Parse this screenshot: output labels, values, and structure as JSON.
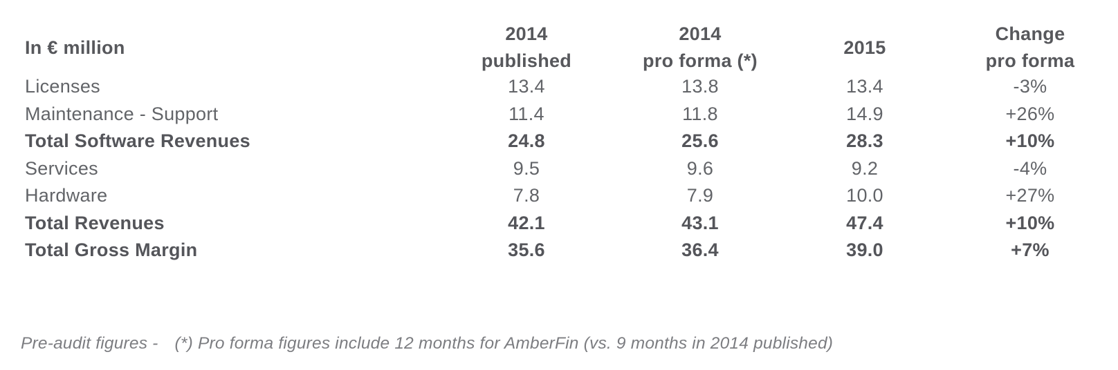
{
  "colors": {
    "background": "#ffffff",
    "text_regular": "#626468",
    "text_bold": "#54555a",
    "text_header": "#57585c",
    "text_footnote": "#7c7d81"
  },
  "table": {
    "unit_label": "In € million",
    "headers": [
      {
        "line1": "2014",
        "line2": "published"
      },
      {
        "line1": "2014",
        "line2": "pro forma (*)"
      },
      {
        "line1": "2015",
        "line2": ""
      },
      {
        "line1": "Change",
        "line2": "pro forma"
      }
    ],
    "rows": [
      {
        "label": "Licenses",
        "emphasis": false,
        "values": [
          "13.4",
          "13.8",
          "13.4",
          "-3%"
        ]
      },
      {
        "label": "Maintenance - Support",
        "emphasis": false,
        "values": [
          "11.4",
          "11.8",
          "14.9",
          "+26%"
        ]
      },
      {
        "label": "Total Software Revenues",
        "emphasis": true,
        "values": [
          "24.8",
          "25.6",
          "28.3",
          "+10%"
        ]
      },
      {
        "label": "Services",
        "emphasis": false,
        "values": [
          "9.5",
          "9.6",
          "9.2",
          "-4%"
        ]
      },
      {
        "label": "Hardware",
        "emphasis": false,
        "values": [
          "7.8",
          "7.9",
          "10.0",
          "+27%"
        ]
      },
      {
        "label": "Total Revenues",
        "emphasis": true,
        "values": [
          "42.1",
          "43.1",
          "47.4",
          "+10%"
        ]
      },
      {
        "label": "Total Gross Margin",
        "emphasis": true,
        "values": [
          "35.6",
          "36.4",
          "39.0",
          "+7%"
        ]
      }
    ]
  },
  "footnote": {
    "part1": "Pre-audit figures -",
    "part2": "(*) Pro forma figures include 12 months for AmberFin (vs. 9 months in 2014 published)"
  },
  "chart_data": {
    "type": "table",
    "title": "Revenue and gross margin summary",
    "unit": "In € million",
    "columns": [
      "2014 published",
      "2014 pro forma (*)",
      "2015",
      "Change pro forma"
    ],
    "rows": [
      {
        "label": "Licenses",
        "values_2014_published": 13.4,
        "values_2014_pro_forma": 13.8,
        "values_2015": 13.4,
        "change_pro_forma": "-3%"
      },
      {
        "label": "Maintenance - Support",
        "values_2014_published": 11.4,
        "values_2014_pro_forma": 11.8,
        "values_2015": 14.9,
        "change_pro_forma": "+26%"
      },
      {
        "label": "Total Software Revenues",
        "values_2014_published": 24.8,
        "values_2014_pro_forma": 25.6,
        "values_2015": 28.3,
        "change_pro_forma": "+10%"
      },
      {
        "label": "Services",
        "values_2014_published": 9.5,
        "values_2014_pro_forma": 9.6,
        "values_2015": 9.2,
        "change_pro_forma": "-4%"
      },
      {
        "label": "Hardware",
        "values_2014_published": 7.8,
        "values_2014_pro_forma": 7.9,
        "values_2015": 10.0,
        "change_pro_forma": "+27%"
      },
      {
        "label": "Total Revenues",
        "values_2014_published": 42.1,
        "values_2014_pro_forma": 43.1,
        "values_2015": 47.4,
        "change_pro_forma": "+10%"
      },
      {
        "label": "Total Gross Margin",
        "values_2014_published": 35.6,
        "values_2014_pro_forma": 36.4,
        "values_2015": 39.0,
        "change_pro_forma": "+7%"
      }
    ],
    "footnote": "Pre-audit figures - (*) Pro forma figures include 12 months for AmberFin (vs. 9 months in 2014 published)"
  }
}
